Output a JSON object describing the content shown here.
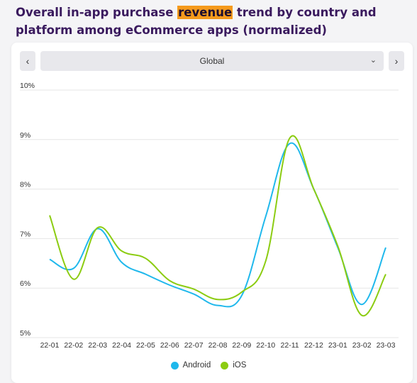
{
  "title": {
    "part1": "Overall in-app purchase ",
    "highlight": "revenue",
    "part2": " trend by country and platform among eCommerce apps (normalized)"
  },
  "controls": {
    "prev_icon": "chevron-left-icon",
    "next_icon": "chevron-right-icon",
    "region_selected": "Global",
    "dropdown_icon": "chevron-down-icon"
  },
  "colors": {
    "android": "#1fb8ec",
    "ios": "#8ccc12",
    "grid": "#e6e6e6",
    "title": "#3a1a5e",
    "highlight": "#f59a1c"
  },
  "chart_data": {
    "type": "line",
    "title": "",
    "xlabel": "",
    "ylabel": "",
    "ylim": [
      5,
      10
    ],
    "yticks": [
      "10%",
      "9%",
      "8%",
      "7%",
      "6%",
      "5%"
    ],
    "categories": [
      "22-01",
      "22-02",
      "22-03",
      "22-04",
      "22-05",
      "22-06",
      "22-07",
      "22-08",
      "22-09",
      "22-10",
      "22-11",
      "22-12",
      "23-01",
      "23-02",
      "23-03"
    ],
    "grid": true,
    "legend_position": "bottom",
    "series": [
      {
        "name": "Android",
        "values": [
          6.58,
          6.4,
          7.2,
          6.52,
          6.28,
          6.06,
          5.88,
          5.65,
          5.85,
          7.45,
          8.92,
          8.0,
          6.82,
          5.67,
          6.82
        ]
      },
      {
        "name": "iOS",
        "values": [
          7.47,
          6.18,
          7.22,
          6.75,
          6.6,
          6.15,
          5.98,
          5.77,
          5.92,
          6.55,
          9.03,
          8.0,
          6.85,
          5.45,
          6.28
        ]
      }
    ]
  }
}
